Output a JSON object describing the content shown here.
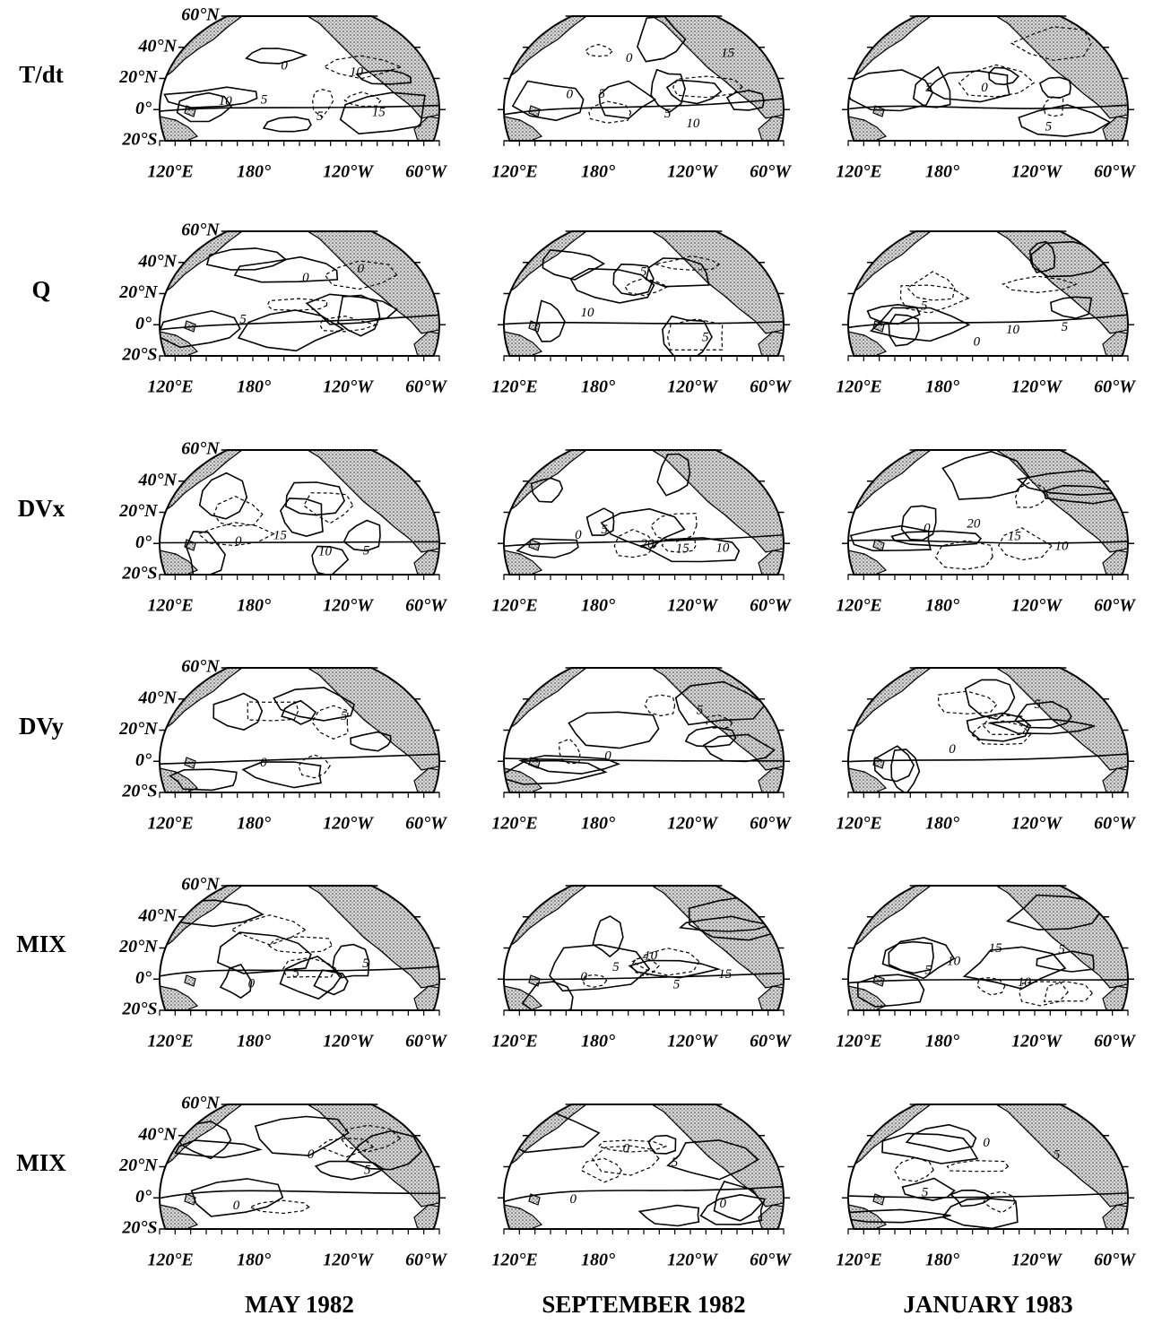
{
  "rows": [
    {
      "label": "T/dt",
      "contour_labels": [
        [
          "10",
          "5",
          "0",
          "5",
          "10",
          "15"
        ],
        [
          "0",
          "5",
          "0",
          "5",
          "10",
          "15"
        ],
        [
          "5",
          "0",
          "5"
        ]
      ]
    },
    {
      "label": "Q",
      "contour_labels": [
        [
          "5",
          "0",
          "0"
        ],
        [
          "10",
          "5",
          "5"
        ],
        [
          "5",
          "0",
          "10",
          "5"
        ]
      ]
    },
    {
      "label": "DVx",
      "contour_labels": [
        [
          "0",
          "15",
          "10",
          "5"
        ],
        [
          "0",
          "5",
          "20",
          "15",
          "10"
        ],
        [
          "0",
          "20",
          "15",
          "10"
        ]
      ]
    },
    {
      "label": "DVy",
      "contour_labels": [
        [
          "0",
          "5"
        ],
        [
          "0",
          "5"
        ],
        [
          "0",
          "5"
        ]
      ]
    },
    {
      "label": "MIX",
      "contour_labels": [
        [
          "0",
          "5",
          "5"
        ],
        [
          "0",
          "5",
          "10",
          "5",
          "15"
        ],
        [
          "5",
          "10",
          "15",
          "10",
          "5"
        ]
      ]
    },
    {
      "label": "MIX",
      "contour_labels": [
        [
          "0",
          "0",
          "5"
        ],
        [
          "0",
          "0",
          "5",
          "0"
        ],
        [
          "5",
          "0",
          "5"
        ]
      ]
    }
  ],
  "columns": [
    "MAY 1982",
    "SEPTEMBER 1982",
    "JANUARY 1983"
  ],
  "lat_labels": [
    "60°N",
    "40°N",
    "20°N",
    "0°",
    "20°S"
  ],
  "lon_labels": [
    "120°E",
    "180°",
    "120°W",
    "60°W"
  ]
}
